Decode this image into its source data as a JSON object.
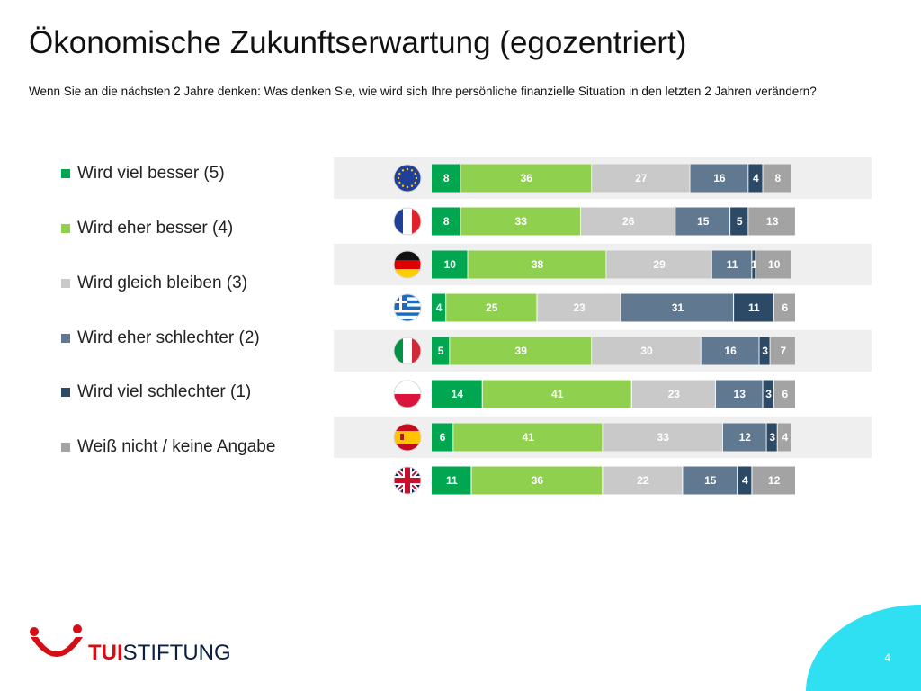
{
  "slide": {
    "title": "Ökonomische Zukunftserwartung (egozentriert)",
    "subtitle": "Wenn Sie an die nächsten 2 Jahre denken: Was denken Sie, wie wird sich Ihre persönliche finanzielle Situation in den letzten 2 Jahren verändern?",
    "page_number": "4"
  },
  "legend": [
    {
      "label": "Wird viel besser (5)",
      "color": "#00a650"
    },
    {
      "label": "Wird eher besser (4)",
      "color": "#8fd14f"
    },
    {
      "label": "Wird gleich bleiben (3)",
      "color": "#c9c9c9"
    },
    {
      "label": "Wird eher schlechter (2)",
      "color": "#607890"
    },
    {
      "label": "Wird viel schlechter (1)",
      "color": "#2c4a66"
    },
    {
      "label": "Weiß nicht / keine Angabe",
      "color": "#a3a3a3"
    }
  ],
  "logo": {
    "brand": "TUI",
    "name": "STIFTUNG"
  },
  "chart_data": {
    "type": "bar",
    "orientation": "horizontal",
    "stacked": true,
    "unit": "%",
    "categories": [
      "EU",
      "France",
      "Germany",
      "Greece",
      "Italy",
      "Poland",
      "Spain",
      "United Kingdom"
    ],
    "category_icons": [
      "eu-flag-icon",
      "france-flag-icon",
      "germany-flag-icon",
      "greece-flag-icon",
      "italy-flag-icon",
      "poland-flag-icon",
      "spain-flag-icon",
      "uk-flag-icon"
    ],
    "row_shading": [
      true,
      false,
      true,
      false,
      true,
      false,
      true,
      false
    ],
    "series": [
      {
        "name": "Wird viel besser (5)",
        "color": "#00a650",
        "values": [
          8,
          8,
          10,
          4,
          5,
          14,
          6,
          11
        ]
      },
      {
        "name": "Wird eher besser (4)",
        "color": "#8fd14f",
        "values": [
          36,
          33,
          38,
          25,
          39,
          41,
          41,
          36
        ]
      },
      {
        "name": "Wird gleich bleiben (3)",
        "color": "#c9c9c9",
        "values": [
          27,
          26,
          29,
          23,
          30,
          23,
          33,
          22
        ]
      },
      {
        "name": "Wird eher schlechter (2)",
        "color": "#607890",
        "values": [
          16,
          15,
          11,
          31,
          16,
          13,
          12,
          15
        ]
      },
      {
        "name": "Wird viel schlechter (1)",
        "color": "#2c4a66",
        "values": [
          4,
          5,
          1,
          11,
          3,
          3,
          3,
          4
        ]
      },
      {
        "name": "Weiß nicht / keine Angabe",
        "color": "#a3a3a3",
        "values": [
          8,
          13,
          10,
          6,
          7,
          6,
          4,
          12
        ]
      }
    ],
    "value_labels": [
      [
        "8",
        "36",
        "27",
        "16",
        "4",
        "8"
      ],
      [
        "8",
        "33",
        "26",
        "15",
        "5",
        "13"
      ],
      [
        "10",
        "38",
        "29",
        "11",
        "1",
        "10"
      ],
      [
        "4",
        "25",
        "23",
        "31",
        "11",
        "6"
      ],
      [
        "5",
        "39",
        "30",
        "16",
        "3",
        "7"
      ],
      [
        "14",
        "41",
        "23",
        "13",
        "3",
        "6"
      ],
      [
        "6",
        "41",
        "33",
        "12",
        "3",
        "4"
      ],
      [
        "11",
        "36",
        "22",
        "15",
        "4",
        "12"
      ]
    ],
    "xlim": [
      0,
      100
    ],
    "grid": false,
    "legend_position": "left"
  }
}
